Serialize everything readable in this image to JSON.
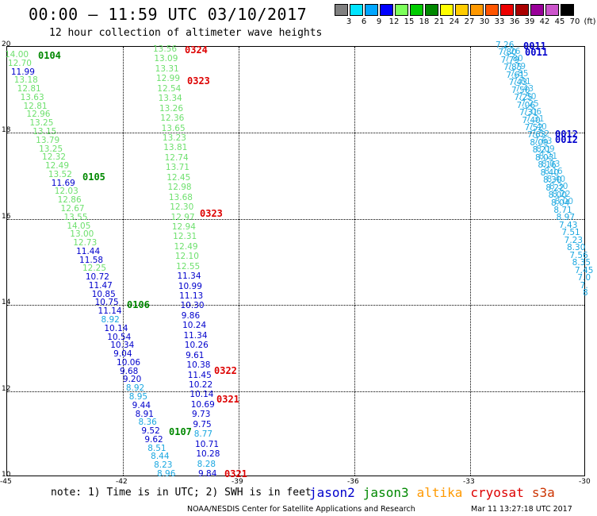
{
  "header": {
    "title": "00:00 – 11:59 UTC 03/10/2017",
    "subtitle": "12 hour collection of altimeter wave heights"
  },
  "color_scale": {
    "labels": [
      "3",
      "6",
      "9",
      "12",
      "15",
      "18",
      "21",
      "24",
      "27",
      "30",
      "33",
      "36",
      "39",
      "42",
      "45",
      "70",
      "(ft)"
    ],
    "colors": [
      "#808080",
      "#00e5ff",
      "#00a6ff",
      "#0000ff",
      "#7cff5a",
      "#00cc00",
      "#008800",
      "#ffff00",
      "#ffcc00",
      "#ff9900",
      "#ff5500",
      "#ee0000",
      "#aa0000",
      "#990099",
      "#cc55cc",
      "#000000"
    ]
  },
  "axes": {
    "lat_range": [
      10,
      20
    ],
    "lon_range": [
      -45,
      -30
    ],
    "lat_labels": [
      "20",
      "18",
      "16",
      "14",
      "12",
      "10"
    ],
    "lon_labels": [
      "-45",
      "-42",
      "-39",
      "-36",
      "-33",
      "-30"
    ]
  },
  "satellite_colors": {
    "jason2": "#0000cc",
    "jason3": "#008800",
    "altika": "#ff9900",
    "cryosat": "#dd0000",
    "s3a": "#cc3300",
    "light_green": "#6ee06e",
    "cyan": "#1aa7e0"
  },
  "tracks": [
    {
      "name": "track-a",
      "values": [
        "14.00",
        "12.70",
        "11.99",
        "13.18",
        "12.81",
        "13.63",
        "12.81",
        "12.96",
        "13.25",
        "13.15",
        "13.79",
        "13.25",
        "12.32",
        "12.49",
        "13.52",
        "11.69",
        "12.03",
        "12.86",
        "12.67",
        "13.55",
        "14.05",
        "13.00",
        "12.73",
        "11.44",
        "11.58",
        "12.25",
        "10.72",
        "11.47",
        "10.85",
        "10.75",
        "11.14",
        "8.92",
        "10.14",
        "10.54",
        "10.34",
        "9.04",
        "10.06",
        "9.68",
        "9.20",
        "8.92",
        "8.95",
        "9.44",
        "8.91",
        "8.36",
        "9.52",
        "9.62",
        "8.51",
        "8.44",
        "8.23",
        "8.96"
      ],
      "colors": [
        "lg",
        "lg",
        "b",
        "lg",
        "lg",
        "lg",
        "lg",
        "lg",
        "lg",
        "lg",
        "lg",
        "lg",
        "lg",
        "lg",
        "lg",
        "b",
        "lg",
        "lg",
        "lg",
        "lg",
        "lg",
        "lg",
        "lg",
        "b",
        "b",
        "lg",
        "b",
        "b",
        "b",
        "b",
        "b",
        "c",
        "b",
        "b",
        "b",
        "b",
        "b",
        "b",
        "b",
        "c",
        "c",
        "b",
        "b",
        "c",
        "b",
        "b",
        "c",
        "c",
        "c",
        "c"
      ]
    },
    {
      "name": "track-b",
      "values": [
        "13.56",
        "13.09",
        "13.31",
        "12.99",
        "12.54",
        "13.34",
        "13.26",
        "12.36",
        "13.65",
        "13.23",
        "13.81",
        "12.74",
        "13.71",
        "12.45",
        "12.98",
        "13.68",
        "12.30",
        "12.97",
        "12.94",
        "12.31",
        "12.49",
        "12.10",
        "12.55",
        "11.34",
        "10.99",
        "11.13",
        "10.30",
        "9.86",
        "10.24",
        "11.34",
        "10.26",
        "9.61",
        "10.38",
        "11.45",
        "10.22",
        "10.14",
        "10.69",
        "9.73",
        "9.75",
        "8.77",
        "10.71",
        "10.28",
        "8.28",
        "9.84"
      ],
      "colors": [
        "lg",
        "lg",
        "lg",
        "lg",
        "lg",
        "lg",
        "lg",
        "lg",
        "lg",
        "lg",
        "lg",
        "lg",
        "lg",
        "lg",
        "lg",
        "lg",
        "lg",
        "lg",
        "lg",
        "lg",
        "lg",
        "lg",
        "lg",
        "b",
        "b",
        "b",
        "b",
        "b",
        "b",
        "b",
        "b",
        "b",
        "b",
        "b",
        "b",
        "b",
        "b",
        "b",
        "b",
        "c",
        "b",
        "b",
        "c",
        "b"
      ]
    },
    {
      "name": "track-c",
      "values": [
        "7.26",
        "7.80",
        "7.79",
        "7.85",
        "7.61",
        "7.43",
        "7.50",
        "7.25",
        "7.06",
        "7.31",
        "7.40",
        "7.52",
        "7.63",
        "8.09",
        "8.21",
        "8.03",
        "8.16",
        "8.40",
        "8.30",
        "8.22",
        "8.00",
        "8.04",
        "8.71",
        "8.97",
        "7.43",
        "7.51",
        "7.23",
        "8.30",
        "7.56",
        "8.35",
        "7.45",
        "7.0",
        "7.",
        "8"
      ]
    }
  ],
  "time_tags": [
    {
      "text": "0104",
      "sat": "jason3"
    },
    {
      "text": "0324",
      "sat": "cryosat"
    },
    {
      "text": "0323",
      "sat": "cryosat"
    },
    {
      "text": "0105",
      "sat": "jason3"
    },
    {
      "text": "0323",
      "sat": "cryosat"
    },
    {
      "text": "0106",
      "sat": "jason3"
    },
    {
      "text": "0322",
      "sat": "cryosat"
    },
    {
      "text": "0321",
      "sat": "cryosat"
    },
    {
      "text": "0107",
      "sat": "jason3"
    },
    {
      "text": "0321",
      "sat": "cryosat"
    },
    {
      "text": "0011",
      "sat": "jason2"
    },
    {
      "text": "0011",
      "sat": "jason2"
    },
    {
      "text": "0012",
      "sat": "jason2"
    },
    {
      "text": "0012",
      "sat": "jason2"
    }
  ],
  "footer": {
    "note": "note: 1) Time is in UTC; 2) SWH is in feet",
    "satellites": [
      {
        "label": "jason2",
        "color": "#0000cc"
      },
      {
        "label": "jason3",
        "color": "#008800"
      },
      {
        "label": "altika",
        "color": "#ff9900"
      },
      {
        "label": "cryosat",
        "color": "#dd0000"
      },
      {
        "label": "s3a",
        "color": "#cc3300"
      }
    ],
    "credit": "NOAA/NESDIS Center for Satellite Applications and Research",
    "timestamp": "Mar 11 13:27:18 UTC 2017"
  }
}
